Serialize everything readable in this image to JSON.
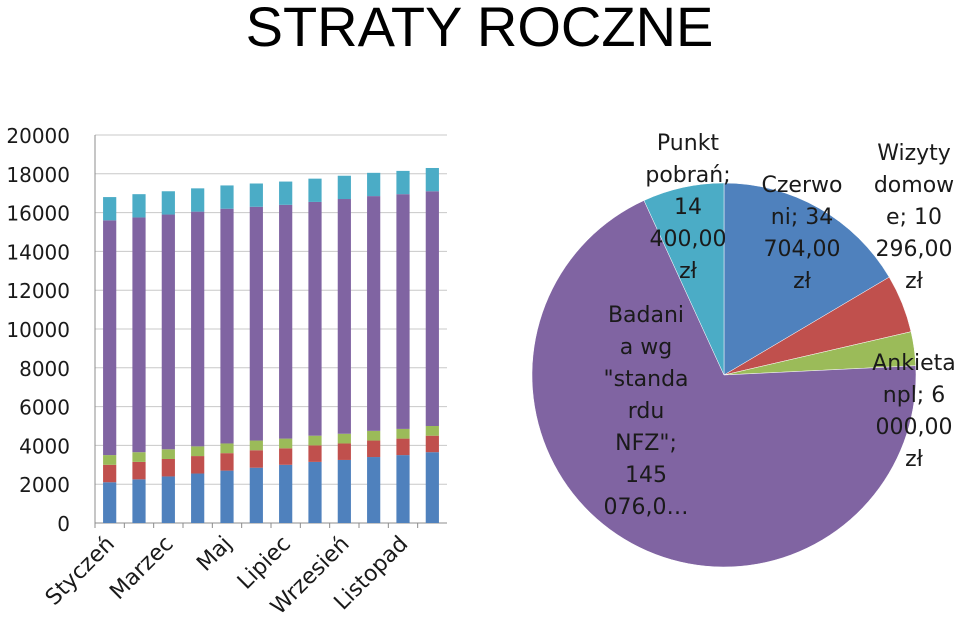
{
  "title": "STRATY ROCZNE",
  "colors": {
    "blue": "#4F81BD",
    "red": "#C0504D",
    "green": "#9BBB59",
    "purple": "#8064A2",
    "cyan": "#4BACC6",
    "grid": "#C8C8C8"
  },
  "chart_data": [
    {
      "type": "bar",
      "stacked": true,
      "categories": [
        "Styczeń",
        "",
        "Marzec",
        "",
        "Maj",
        "",
        "Lipiec",
        "",
        "Wrzesień",
        "",
        "Listopad",
        ""
      ],
      "x_tick_labels": [
        "Styczeń",
        "Marzec",
        "Maj",
        "Lipiec",
        "Wrzesień",
        "Listopad"
      ],
      "series": [
        {
          "color": "blue",
          "values": [
            2100,
            2250,
            2400,
            2550,
            2700,
            2850,
            3000,
            3150,
            3250,
            3400,
            3500,
            3650
          ]
        },
        {
          "color": "red",
          "values": [
            900,
            900,
            900,
            900,
            900,
            900,
            850,
            850,
            850,
            850,
            850,
            850
          ]
        },
        {
          "color": "green",
          "values": [
            500,
            500,
            500,
            500,
            500,
            500,
            500,
            500,
            500,
            500,
            500,
            500
          ]
        },
        {
          "color": "purple",
          "values": [
            12100,
            12100,
            12100,
            12100,
            12100,
            12050,
            12050,
            12050,
            12100,
            12100,
            12100,
            12100
          ]
        },
        {
          "color": "cyan",
          "values": [
            1200,
            1200,
            1200,
            1200,
            1200,
            1200,
            1200,
            1200,
            1200,
            1200,
            1200,
            1200
          ]
        }
      ],
      "ylim": [
        0,
        20000
      ],
      "y_ticks": [
        0,
        2000,
        4000,
        6000,
        8000,
        10000,
        12000,
        14000,
        16000,
        18000,
        20000
      ],
      "grid": true
    },
    {
      "type": "pie",
      "start_angle_deg": 0,
      "slices": [
        {
          "label_lines": [
            "Czerwo",
            "ni;  34",
            "704,00",
            "zł"
          ],
          "value": 34704,
          "color": "blue"
        },
        {
          "label_lines": [
            "Wizyty",
            "domow",
            "e;  10",
            "296,00",
            "zł"
          ],
          "value": 10296,
          "color": "red"
        },
        {
          "label_lines": [
            "Ankieta",
            "npl;  6",
            "000,00",
            "zł"
          ],
          "value": 6000,
          "color": "green"
        },
        {
          "label_lines": [
            "Badani",
            "a wg",
            "\"standa",
            "rdu",
            "NFZ\";",
            "145",
            "076,0…"
          ],
          "value": 145076,
          "color": "purple"
        },
        {
          "label_lines": [
            "Punkt",
            "pobrań;",
            "14",
            "400,00",
            "zł"
          ],
          "value": 14400,
          "color": "cyan"
        }
      ]
    }
  ]
}
